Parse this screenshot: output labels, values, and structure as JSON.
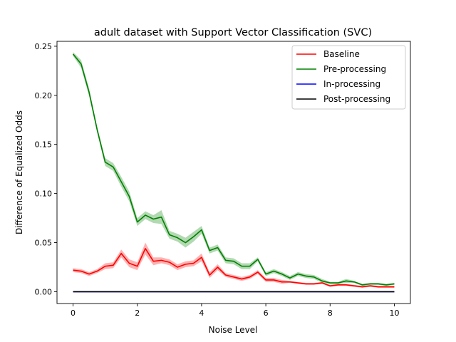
{
  "chart_data": {
    "type": "line",
    "title": "adult dataset with Support Vector Classification (SVC)",
    "xlabel": "Noise Level",
    "ylabel": "Difference of Equalized Odds",
    "xlim": [
      -0.5,
      10.5
    ],
    "ylim": [
      -0.012,
      0.255
    ],
    "xticks": [
      0,
      2,
      4,
      6,
      8,
      10
    ],
    "xtick_labels": [
      "0",
      "2",
      "4",
      "6",
      "8",
      "10"
    ],
    "yticks": [
      0.0,
      0.05,
      0.1,
      0.15,
      0.2,
      0.25
    ],
    "ytick_labels": [
      "0.00",
      "0.05",
      "0.10",
      "0.15",
      "0.20",
      "0.25"
    ],
    "grid": false,
    "legend_position": "top-right",
    "x": [
      0,
      0.25,
      0.5,
      0.75,
      1.0,
      1.25,
      1.5,
      1.75,
      2.0,
      2.25,
      2.5,
      2.75,
      3.0,
      3.25,
      3.5,
      3.75,
      4.0,
      4.25,
      4.5,
      4.75,
      5.0,
      5.25,
      5.5,
      5.75,
      6.0,
      6.25,
      6.5,
      6.75,
      7.0,
      7.25,
      7.5,
      7.75,
      8.0,
      8.25,
      8.5,
      8.75,
      9.0,
      9.25,
      9.5,
      9.75,
      10.0
    ],
    "series": [
      {
        "name": "Baseline",
        "color": "#ff0000",
        "values": [
          0.022,
          0.021,
          0.018,
          0.021,
          0.026,
          0.027,
          0.039,
          0.029,
          0.026,
          0.044,
          0.031,
          0.032,
          0.03,
          0.025,
          0.028,
          0.029,
          0.035,
          0.017,
          0.025,
          0.017,
          0.015,
          0.013,
          0.015,
          0.02,
          0.012,
          0.012,
          0.01,
          0.01,
          0.009,
          0.008,
          0.008,
          0.009,
          0.006,
          0.007,
          0.007,
          0.006,
          0.005,
          0.006,
          0.005,
          0.005,
          0.005
        ],
        "band": [
          0.002,
          0.002,
          0.002,
          0.002,
          0.003,
          0.003,
          0.004,
          0.004,
          0.004,
          0.006,
          0.004,
          0.003,
          0.003,
          0.003,
          0.003,
          0.003,
          0.004,
          0.003,
          0.003,
          0.002,
          0.002,
          0.002,
          0.002,
          0.002,
          0.002,
          0.002,
          0.002,
          0.001,
          0.001,
          0.001,
          0.001,
          0.001,
          0.001,
          0.001,
          0.001,
          0.001,
          0.001,
          0.001,
          0.001,
          0.001,
          0.001
        ]
      },
      {
        "name": "Pre-processing",
        "color": "#008000",
        "values": [
          0.242,
          0.232,
          0.203,
          0.165,
          0.132,
          0.127,
          0.112,
          0.097,
          0.071,
          0.078,
          0.074,
          0.076,
          0.058,
          0.055,
          0.05,
          0.056,
          0.063,
          0.042,
          0.045,
          0.032,
          0.031,
          0.026,
          0.026,
          0.033,
          0.018,
          0.021,
          0.018,
          0.014,
          0.018,
          0.016,
          0.015,
          0.011,
          0.009,
          0.009,
          0.011,
          0.01,
          0.007,
          0.008,
          0.008,
          0.007,
          0.008
        ],
        "band": [
          0.002,
          0.004,
          0.004,
          0.003,
          0.004,
          0.004,
          0.005,
          0.005,
          0.004,
          0.004,
          0.004,
          0.007,
          0.004,
          0.004,
          0.005,
          0.005,
          0.004,
          0.003,
          0.003,
          0.003,
          0.003,
          0.003,
          0.003,
          0.002,
          0.002,
          0.002,
          0.002,
          0.002,
          0.002,
          0.002,
          0.002,
          0.002,
          0.001,
          0.001,
          0.002,
          0.001,
          0.001,
          0.001,
          0.001,
          0.001,
          0.001
        ]
      },
      {
        "name": "In-processing",
        "color": "#0000ff",
        "values": [
          0,
          0,
          0,
          0,
          0,
          0,
          0,
          0,
          0,
          0,
          0,
          0,
          0,
          0,
          0,
          0,
          0,
          0,
          0,
          0,
          0,
          0,
          0,
          0,
          0,
          0,
          0,
          0,
          0,
          0,
          0,
          0,
          0,
          0,
          0,
          0,
          0,
          0,
          0,
          0,
          0
        ]
      },
      {
        "name": "Post-processing",
        "color": "#000000",
        "values": [
          0,
          0,
          0,
          0,
          0,
          0,
          0,
          0,
          0,
          0,
          0,
          0,
          0,
          0,
          0,
          0,
          0,
          0,
          0,
          0,
          0,
          0,
          0,
          0,
          0,
          0,
          0,
          0,
          0,
          0,
          0,
          0,
          0,
          0,
          0,
          0,
          0,
          0,
          0,
          0,
          0
        ]
      }
    ]
  }
}
